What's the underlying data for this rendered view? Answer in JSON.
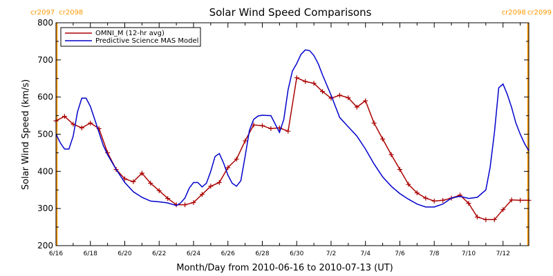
{
  "chart_data": {
    "type": "line",
    "title": "Solar Wind Speed Comparisons",
    "xlabel": "Month/Day from 2010-06-16 to 2010-07-13 (UT)",
    "ylabel": "Solar Wind Speed (km/s)",
    "ylim": [
      200,
      800
    ],
    "xlim_days": [
      0,
      27.5
    ],
    "yticks": [
      200,
      300,
      400,
      500,
      600,
      700,
      800
    ],
    "xticks": [
      {
        "day": 0,
        "label": "6/16"
      },
      {
        "day": 2,
        "label": "6/18"
      },
      {
        "day": 4,
        "label": "6/20"
      },
      {
        "day": 6,
        "label": "6/22"
      },
      {
        "day": 8,
        "label": "6/24"
      },
      {
        "day": 10,
        "label": "6/26"
      },
      {
        "day": 12,
        "label": "6/28"
      },
      {
        "day": 14,
        "label": "6/30"
      },
      {
        "day": 16,
        "label": "7/2"
      },
      {
        "day": 18,
        "label": "7/4"
      },
      {
        "day": 20,
        "label": "7/6"
      },
      {
        "day": 22,
        "label": "7/8"
      },
      {
        "day": 24,
        "label": "7/10"
      },
      {
        "day": 26,
        "label": "7/12"
      }
    ],
    "legend_position": "top-left",
    "carrington_markers": [
      {
        "day": 0.05,
        "left_label": "cr2097",
        "right_label": "cr2098",
        "color": "#ff9900"
      },
      {
        "day": 27.45,
        "left_label": "cr2098",
        "right_label": "cr2099",
        "color": "#ff9900"
      }
    ],
    "series": [
      {
        "name": "OMNI_M (12-hr avg)",
        "color": "#aa0000",
        "marker": "plus",
        "x": [
          0.0,
          0.5,
          1.0,
          1.5,
          2.0,
          2.5,
          3.0,
          3.5,
          4.0,
          4.5,
          5.0,
          5.5,
          6.0,
          6.5,
          7.0,
          7.5,
          8.0,
          8.5,
          9.0,
          9.5,
          10.0,
          10.5,
          11.0,
          11.5,
          12.0,
          12.5,
          13.0,
          13.5,
          14.0,
          14.5,
          15.0,
          15.5,
          16.0,
          16.5,
          17.0,
          17.5,
          18.0,
          18.5,
          19.0,
          19.5,
          20.0,
          20.5,
          21.0,
          21.5,
          22.0,
          22.5,
          23.0,
          23.5,
          24.0,
          24.5,
          25.0,
          25.5,
          26.0,
          26.5,
          27.0,
          27.5
        ],
        "values": [
          536,
          548,
          527,
          517,
          530,
          515,
          450,
          405,
          380,
          372,
          395,
          368,
          348,
          327,
          310,
          310,
          316,
          338,
          360,
          370,
          410,
          433,
          482,
          525,
          523,
          515,
          517,
          508,
          652,
          642,
          637,
          615,
          597,
          605,
          598,
          573,
          590,
          530,
          487,
          445,
          405,
          365,
          342,
          328,
          320,
          322,
          328,
          336,
          314,
          277,
          270,
          270,
          297,
          323,
          322,
          322
        ]
      },
      {
        "name": "Predictive Science MAS Model",
        "color": "#0000cc",
        "marker": "none",
        "x": [
          0.0,
          0.25,
          0.5,
          0.75,
          1.0,
          1.25,
          1.5,
          1.75,
          2.0,
          2.25,
          2.5,
          2.75,
          3.0,
          3.5,
          4.0,
          4.5,
          5.0,
          5.5,
          6.0,
          6.5,
          7.0,
          7.25,
          7.5,
          7.75,
          8.0,
          8.25,
          8.5,
          8.75,
          9.0,
          9.25,
          9.5,
          9.75,
          10.0,
          10.25,
          10.5,
          10.75,
          11.0,
          11.25,
          11.5,
          11.75,
          12.0,
          12.5,
          13.0,
          13.25,
          13.5,
          13.75,
          14.0,
          14.25,
          14.5,
          14.75,
          15.0,
          15.25,
          15.5,
          16.0,
          16.5,
          17.0,
          17.5,
          18.0,
          18.5,
          19.0,
          19.5,
          20.0,
          20.5,
          21.0,
          21.5,
          22.0,
          22.5,
          23.0,
          23.5,
          24.0,
          24.5,
          25.0,
          25.25,
          25.5,
          25.75,
          26.0,
          26.25,
          26.5,
          26.75,
          27.0,
          27.25,
          27.5
        ],
        "values": [
          500,
          477,
          460,
          460,
          495,
          560,
          597,
          597,
          575,
          540,
          505,
          470,
          445,
          405,
          370,
          345,
          330,
          320,
          318,
          315,
          308,
          315,
          328,
          355,
          370,
          370,
          358,
          368,
          400,
          440,
          448,
          422,
          390,
          368,
          360,
          375,
          440,
          510,
          540,
          549,
          551,
          550,
          505,
          540,
          620,
          670,
          690,
          715,
          727,
          725,
          712,
          690,
          660,
          605,
          545,
          520,
          495,
          460,
          420,
          385,
          360,
          340,
          325,
          312,
          304,
          304,
          312,
          328,
          333,
          327,
          330,
          350,
          410,
          505,
          625,
          635,
          607,
          572,
          530,
          500,
          475,
          455
        ]
      }
    ]
  }
}
